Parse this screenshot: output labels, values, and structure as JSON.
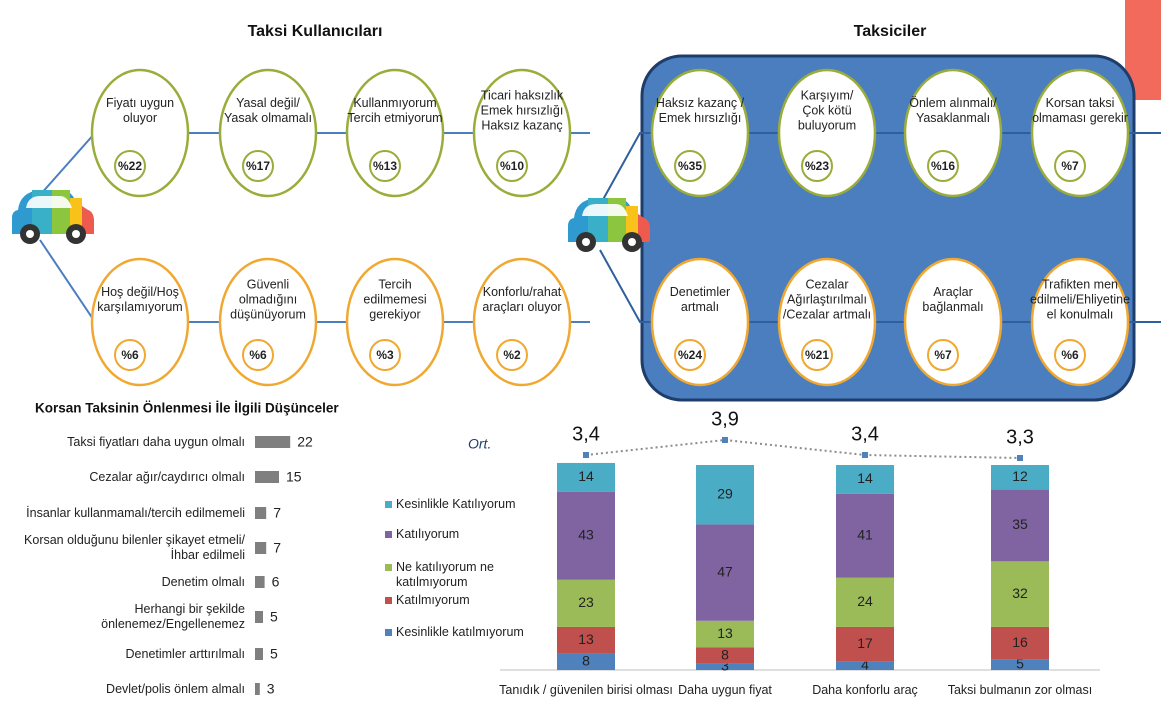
{
  "diagram": {
    "groups": [
      {
        "title": "Taksi Kullanıcıları",
        "top": [
          {
            "lines": [
              "Fiyatı uygun",
              "oluyor"
            ],
            "pct": "%22"
          },
          {
            "lines": [
              "Yasal değil/",
              "Yasak olmamalı"
            ],
            "pct": "%17"
          },
          {
            "lines": [
              "Kullanmıyorum",
              "Tercih etmiyorum"
            ],
            "pct": "%13"
          },
          {
            "lines": [
              "Ticari haksızlık",
              "Emek hırsızlığı",
              "Haksız kazanç"
            ],
            "pct": "%10"
          }
        ],
        "bottom": [
          {
            "lines": [
              "Hoş değil/Hoş",
              "karşılamıyorum"
            ],
            "pct": "%6"
          },
          {
            "lines": [
              "Güvenli",
              "olmadığını",
              "düşünüyorum"
            ],
            "pct": "%6"
          },
          {
            "lines": [
              "Tercih",
              "edilmemesi",
              "gerekiyor"
            ],
            "pct": "%3"
          },
          {
            "lines": [
              "Konforlu/rahat",
              "araçları oluyor"
            ],
            "pct": "%2"
          }
        ]
      },
      {
        "title": "Taksiciler",
        "top": [
          {
            "lines": [
              "Haksız kazanç /",
              "Emek hırsızlığı"
            ],
            "pct": "%35"
          },
          {
            "lines": [
              "Karşıyım/",
              "Çok kötü",
              "buluyorum"
            ],
            "pct": "%23"
          },
          {
            "lines": [
              "Önlem alınmalı/",
              "Yasaklanmalı"
            ],
            "pct": "%16"
          },
          {
            "lines": [
              "Korsan taksi",
              "olmaması gerekir"
            ],
            "pct": "%7"
          }
        ],
        "bottom": [
          {
            "lines": [
              "Denetimler",
              "artmalı"
            ],
            "pct": "%24"
          },
          {
            "lines": [
              "Cezalar",
              "Ağırlaştırılmalı",
              "/Cezalar artmalı"
            ],
            "pct": "%21"
          },
          {
            "lines": [
              "Araçlar",
              "bağlanmalı"
            ],
            "pct": "%7"
          },
          {
            "lines": [
              "Trafikten men",
              "edilmeli/Ehliyetine",
              "el konulmalı"
            ],
            "pct": "%6"
          }
        ]
      }
    ]
  },
  "chart_data": [
    {
      "type": "hbar",
      "title": "Korsan Taksinin Önlenmesi İle İlgili Düşünceler",
      "categories": [
        "Taksi fiyatları daha uygun olmalı",
        "Cezalar ağır/caydırıcı olmalı",
        "İnsanlar kullanmamalı/tercih edilmemeli",
        "Korsan olduğunu bilenler şikayet etmeli/İhbar edilmeli",
        "Denetim olmalı",
        "Herhangi bir şekilde önlenemez/Engellenemez",
        "Denetimler arttırılmalı",
        "Devlet/polis önlem almalı"
      ],
      "values": [
        22,
        15,
        7,
        7,
        6,
        5,
        5,
        3
      ],
      "color": "#7f7f7f"
    },
    {
      "type": "stacked_bar",
      "categories": [
        "Tanıdık / güvenilen birisi olması",
        "Daha uygun fiyat",
        "Daha konforlu araç",
        "Taksi bulmanın zor olması"
      ],
      "series": [
        {
          "name": "Kesinlikle katılmıyorum",
          "color": "#4f81bd",
          "values": [
            8,
            3,
            4,
            5
          ]
        },
        {
          "name": "Katılmıyorum",
          "color": "#c0504d",
          "values": [
            13,
            8,
            17,
            16
          ]
        },
        {
          "name": "Ne katılıyorum ne katılmıyorum",
          "color": "#9bbb59",
          "values": [
            23,
            13,
            24,
            32
          ]
        },
        {
          "name": "Katılıyorum",
          "color": "#8064a2",
          "values": [
            43,
            47,
            41,
            35
          ]
        },
        {
          "name": "Kesinlikle Katılıyorum",
          "color": "#4bacc6",
          "values": [
            14,
            29,
            14,
            12
          ]
        }
      ],
      "average": {
        "label": "Ort.",
        "color": "#4f81bd",
        "values": [
          3.4,
          3.9,
          3.4,
          3.3
        ],
        "value_labels": [
          "3,4",
          "3,9",
          "3,4",
          "3,3"
        ]
      }
    }
  ]
}
